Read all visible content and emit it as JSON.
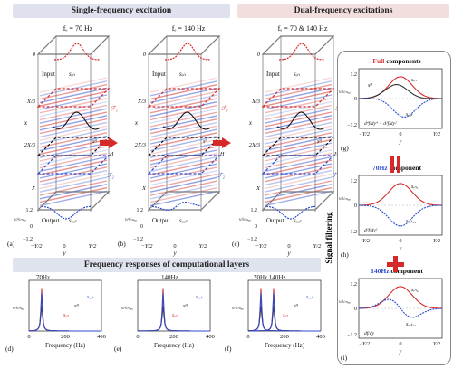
{
  "headers": {
    "single": "Single-frequency excitation",
    "dual": "Dual-frequency excitations",
    "freq_responses": "Frequency responses of computational layers"
  },
  "side_label": "Signal filtering",
  "colors": {
    "red": "#d62a2a",
    "blue": "#2b4bd0",
    "dark": "#333333",
    "black_line": "#111111",
    "header_band": "#dfe1ee",
    "header_band_dual": "#f3dede",
    "freq_band": "#dfe3ee"
  },
  "panels_3d": [
    {
      "letter": "(a)",
      "freq": "fₑ = 70 Hz",
      "input": "Input",
      "s_in": "sᵢₙ",
      "output": "Output",
      "s_out": "sₒᵤₜ",
      "s_h": "sᴴ"
    },
    {
      "letter": "(b)",
      "freq": "fₑ = 140 Hz",
      "input": "Input",
      "s_in": "sᵢₙ",
      "output": "Output",
      "s_out": "sₒᵤₜ",
      "s_h": "sᴴ"
    },
    {
      "letter": "(c)",
      "freq": "fₑ = 70 & 140 Hz",
      "input": "Input",
      "s_in": "sᵢₙ",
      "output": "Output",
      "s_out": "sₒᵤₜ",
      "s_h": "sᴴ"
    }
  ],
  "axis_3d": {
    "z_ticks": [
      "0",
      "X/3",
      "2X/3",
      "X"
    ],
    "z_label": "x",
    "y_ticks": [
      "−Y/2",
      "0",
      "Y/2"
    ],
    "y_label": "y",
    "v_label": "v/vₘₐₓ",
    "v_ticks": [
      "1.2",
      "0",
      "−1.2"
    ],
    "h_label": "H",
    "layer1": "ℱ₁",
    "layer2": "ℱ₂"
  },
  "freq_panels": [
    {
      "letter": "(d)",
      "peak_label": "70Hz",
      "s_h": "sᴴ",
      "s_in": "sᵢₙ",
      "s_out": "sₒᵤₜ",
      "xlabel": "Frequency (Hz)",
      "xticks": [
        "0",
        "200",
        "400"
      ],
      "ylabel": "v/vₘₐₓ"
    },
    {
      "letter": "(e)",
      "peak_label": "140Hz",
      "s_h": "sᴴ",
      "s_in": "sᵢₙ",
      "s_out": "sₒᵤₜ",
      "xlabel": "Frequency (Hz)",
      "xticks": [
        "0",
        "200",
        "400"
      ],
      "ylabel": "v/vₘₐₓ"
    },
    {
      "letter": "(f)",
      "peak_label": "70Hz  140Hz",
      "s_h": "sᴴ",
      "s_in": "sᵢₙ",
      "s_out": "sₒᵤₜ",
      "xlabel": "Frequency (Hz)",
      "xticks": [
        "0",
        "200",
        "400"
      ],
      "ylabel": "v/vₘₐₓ"
    }
  ],
  "filter_panels": [
    {
      "letter": "(g)",
      "title": "Full",
      "title_suffix": " components",
      "s_in": "sᵢₙ",
      "s_h": "sᴴ",
      "s_out": "sₒᵤₜ",
      "formula": "d⁴f/dy⁴ + d²f/dy²"
    },
    {
      "letter": "(h)",
      "title": "70Hz",
      "title_suffix": " component",
      "s_in": "sᵢₙ,₁",
      "s_out": "sₒᵤₜ,₁",
      "formula": "d²f/dy²"
    },
    {
      "letter": "(i)",
      "title": "140Hz",
      "title_suffix": " component",
      "s_in": "sᵢₙ,₂",
      "s_out": "sₒᵤₜ,₂",
      "formula": "df/dy"
    }
  ],
  "filter_axis": {
    "yticks": [
      "1.2",
      "0",
      "−1.2"
    ],
    "xticks": [
      "−Y/2",
      "0",
      "Y/2"
    ],
    "xlabel": "y",
    "ylabel": "v/vₘₐₓ"
  }
}
